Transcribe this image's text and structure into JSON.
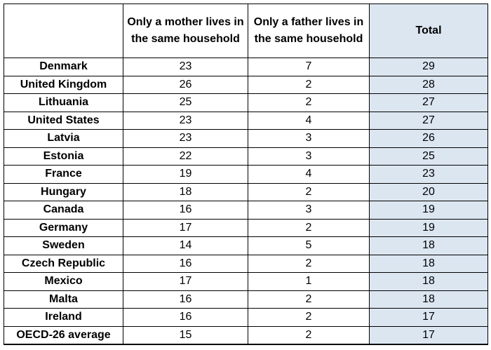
{
  "table": {
    "headers": {
      "country": "",
      "mother": "Only a mother lives in the same household",
      "father": "Only a father lives in the same household",
      "total": "Total"
    },
    "rows": [
      {
        "country": "Denmark",
        "mother": "23",
        "father": "7",
        "total": "29"
      },
      {
        "country": "United Kingdom",
        "mother": "26",
        "father": "2",
        "total": "28"
      },
      {
        "country": "Lithuania",
        "mother": "25",
        "father": "2",
        "total": "27"
      },
      {
        "country": "United States",
        "mother": "23",
        "father": "4",
        "total": "27"
      },
      {
        "country": "Latvia",
        "mother": "23",
        "father": "3",
        "total": "26"
      },
      {
        "country": "Estonia",
        "mother": "22",
        "father": "3",
        "total": "25"
      },
      {
        "country": "France",
        "mother": "19",
        "father": "4",
        "total": "23"
      },
      {
        "country": "Hungary",
        "mother": "18",
        "father": "2",
        "total": "20"
      },
      {
        "country": "Canada",
        "mother": "16",
        "father": "3",
        "total": "19"
      },
      {
        "country": "Germany",
        "mother": "17",
        "father": "2",
        "total": "19"
      },
      {
        "country": "Sweden",
        "mother": "14",
        "father": "5",
        "total": "18"
      },
      {
        "country": "Czech Republic",
        "mother": "16",
        "father": "2",
        "total": "18"
      },
      {
        "country": "Mexico",
        "mother": "17",
        "father": "1",
        "total": "18"
      },
      {
        "country": "Malta",
        "mother": "16",
        "father": "2",
        "total": "18"
      },
      {
        "country": "Ireland",
        "mother": "16",
        "father": "2",
        "total": "17"
      },
      {
        "country": "OECD-26 average",
        "mother": "15",
        "father": "2",
        "total": "17"
      }
    ]
  },
  "colors": {
    "total_column_fill": "#dce6f1",
    "border": "#000000"
  }
}
